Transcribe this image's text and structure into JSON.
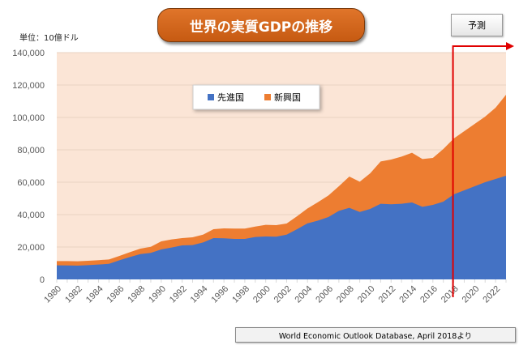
{
  "header": {
    "title": "世界の実質GDPの推移",
    "unit": "単位：10億ドル",
    "forecast_label": "予測",
    "source": "World Economic Outlook Database, April 2018より"
  },
  "chart_data": {
    "type": "area",
    "stacked": true,
    "title": "世界の実質GDPの推移",
    "ylabel": "単位：10億ドル",
    "ylim": [
      0,
      140000
    ],
    "yticks": [
      0,
      20000,
      40000,
      60000,
      80000,
      100000,
      120000,
      140000
    ],
    "ytick_labels": [
      "0",
      "20,000",
      "40,000",
      "60,000",
      "80,000",
      "100,000",
      "120,000",
      "140,000"
    ],
    "x": [
      1980,
      1981,
      1982,
      1983,
      1984,
      1985,
      1986,
      1987,
      1988,
      1989,
      1990,
      1991,
      1992,
      1993,
      1994,
      1995,
      1996,
      1997,
      1998,
      1999,
      2000,
      2001,
      2002,
      2003,
      2004,
      2005,
      2006,
      2007,
      2008,
      2009,
      2010,
      2011,
      2012,
      2013,
      2014,
      2015,
      2016,
      2017,
      2018,
      2019,
      2020,
      2021,
      2022,
      2023
    ],
    "xtick_labels": [
      "1980",
      "1982",
      "1984",
      "1986",
      "1988",
      "1990",
      "1992",
      "1994",
      "1996",
      "1998",
      "2000",
      "2002",
      "2004",
      "2006",
      "2008",
      "2010",
      "2012",
      "2014",
      "2016",
      "2018",
      "2020",
      "2022"
    ],
    "forecast_from": 2018,
    "legend_position": "top-center",
    "series": [
      {
        "name": "先進国",
        "color": "#4472c4",
        "values": [
          8700,
          8600,
          8500,
          8800,
          9200,
          9600,
          11800,
          13800,
          15600,
          16400,
          18500,
          19700,
          21000,
          21200,
          22800,
          25500,
          25400,
          25000,
          25000,
          26200,
          26500,
          26400,
          27600,
          31000,
          34600,
          36300,
          38500,
          42300,
          44200,
          41600,
          43500,
          46700,
          46400,
          46700,
          47500,
          44800,
          46000,
          48000,
          52500,
          55000,
          57500,
          60000,
          62000,
          64000
        ]
      },
      {
        "name": "新興国",
        "color": "#ed7d31",
        "values": [
          2600,
          2700,
          2700,
          2700,
          2700,
          2700,
          2700,
          3000,
          3400,
          3700,
          5000,
          5000,
          4500,
          4800,
          4800,
          5500,
          6100,
          6400,
          6400,
          6400,
          7200,
          7100,
          6900,
          8000,
          9200,
          11400,
          13300,
          15200,
          19300,
          18700,
          22000,
          26100,
          27600,
          29100,
          30700,
          29500,
          29000,
          32500,
          34500,
          36500,
          38500,
          40500,
          44000,
          50000
        ]
      }
    ]
  }
}
